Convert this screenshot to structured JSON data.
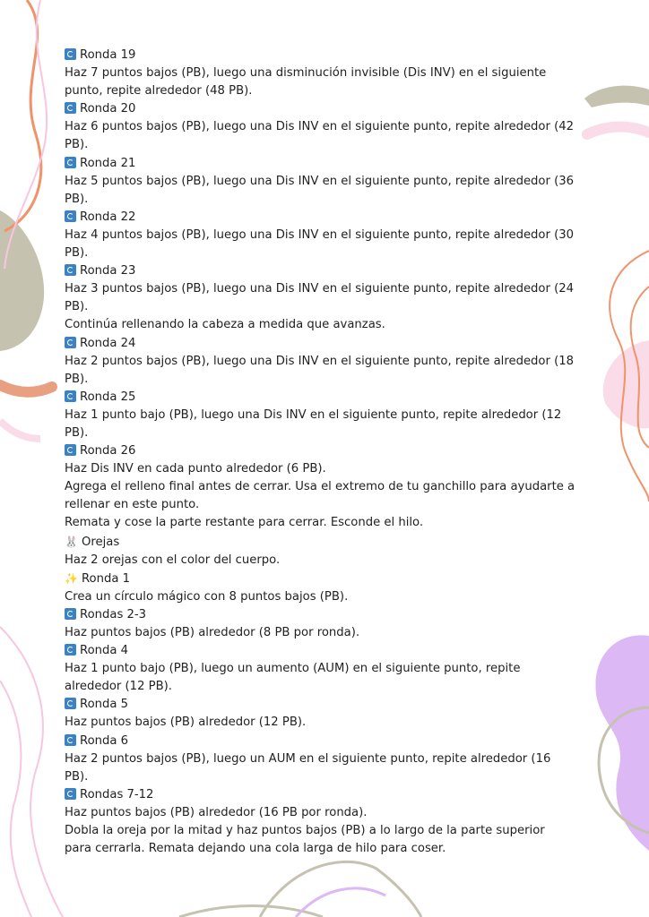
{
  "colors": {
    "orange": "#f0936a",
    "sage": "#c6c2b0",
    "pink": "#fadbe8",
    "lavender": "#dcb8f5",
    "icon_blue": "#3b82c4"
  },
  "blocks": [
    {
      "type": "heading",
      "icon": "cycle-icon",
      "text": "Ronda 19"
    },
    {
      "type": "text",
      "text": "Haz 7 puntos bajos (PB), luego una disminución invisible (Dis INV) en el siguiente\npunto, repite alrededor (48 PB)."
    },
    {
      "type": "heading",
      "icon": "cycle-icon",
      "text": "Ronda 20"
    },
    {
      "type": "text",
      "text": "Haz 6 puntos bajos (PB), luego una Dis INV en el siguiente punto, repite alrededor (42\nPB)."
    },
    {
      "type": "heading",
      "icon": "cycle-icon",
      "text": "Ronda 21"
    },
    {
      "type": "text",
      "text": "Haz 5 puntos bajos (PB), luego una Dis INV en el siguiente punto, repite alrededor (36\nPB)."
    },
    {
      "type": "heading",
      "icon": "cycle-icon",
      "text": "Ronda 22"
    },
    {
      "type": "text",
      "text": "Haz 4 puntos bajos (PB), luego una Dis INV en el siguiente punto, repite alrededor (30\nPB)."
    },
    {
      "type": "heading",
      "icon": "cycle-icon",
      "text": "Ronda 23"
    },
    {
      "type": "text",
      "text": "Haz 3 puntos bajos (PB), luego una Dis INV en el siguiente punto, repite alrededor (24\nPB)."
    },
    {
      "type": "text",
      "text": "Continúa rellenando la cabeza a medida que avanzas."
    },
    {
      "type": "heading",
      "icon": "cycle-icon",
      "text": "Ronda 24"
    },
    {
      "type": "text",
      "text": "Haz 2 puntos bajos (PB), luego una Dis INV en el siguiente punto, repite alrededor (18\nPB)."
    },
    {
      "type": "heading",
      "icon": "cycle-icon",
      "text": "Ronda 25"
    },
    {
      "type": "text",
      "text": "Haz 1 punto bajo (PB), luego una Dis INV en el siguiente punto, repite alrededor (12\nPB)."
    },
    {
      "type": "heading",
      "icon": "cycle-icon",
      "text": "Ronda 26"
    },
    {
      "type": "text",
      "text": "Haz Dis INV en cada punto alrededor (6 PB)."
    },
    {
      "type": "text",
      "text": "Agrega el relleno final antes de cerrar. Usa el extremo de tu ganchillo para ayudarte a\nrellenar en este punto."
    },
    {
      "type": "text",
      "text": "Remata y cose la parte restante para cerrar. Esconde el hilo."
    },
    {
      "type": "heading",
      "icon": "rabbit-icon",
      "text": "Orejas"
    },
    {
      "type": "text",
      "text": "Haz 2 orejas con el color del cuerpo."
    },
    {
      "type": "heading",
      "icon": "magic-wand-icon",
      "text": "Ronda 1"
    },
    {
      "type": "text",
      "text": "Crea un círculo mágico con 8 puntos bajos (PB)."
    },
    {
      "type": "heading",
      "icon": "cycle-icon",
      "text": "Rondas 2-3"
    },
    {
      "type": "text",
      "text": "Haz puntos bajos (PB) alrededor (8 PB por ronda)."
    },
    {
      "type": "heading",
      "icon": "cycle-icon",
      "text": "Ronda 4"
    },
    {
      "type": "text",
      "text": "Haz 1 punto bajo (PB), luego un aumento (AUM) en el siguiente punto, repite\nalrededor (12 PB)."
    },
    {
      "type": "heading",
      "icon": "cycle-icon",
      "text": "Ronda 5"
    },
    {
      "type": "text",
      "text": "Haz puntos bajos (PB) alrededor (12 PB)."
    },
    {
      "type": "heading",
      "icon": "cycle-icon",
      "text": "Ronda 6"
    },
    {
      "type": "text",
      "text": "Haz 2 puntos bajos (PB), luego un AUM en el siguiente punto, repite alrededor (16\nPB)."
    },
    {
      "type": "heading",
      "icon": "cycle-icon",
      "text": "Rondas 7-12"
    },
    {
      "type": "text",
      "text": "Haz puntos bajos (PB) alrededor (16 PB por ronda)."
    },
    {
      "type": "text",
      "text": "Dobla la oreja por la mitad y haz puntos bajos (PB) a lo largo de la parte superior\npara cerrarla. Remata dejando una cola larga de hilo para coser."
    }
  ]
}
